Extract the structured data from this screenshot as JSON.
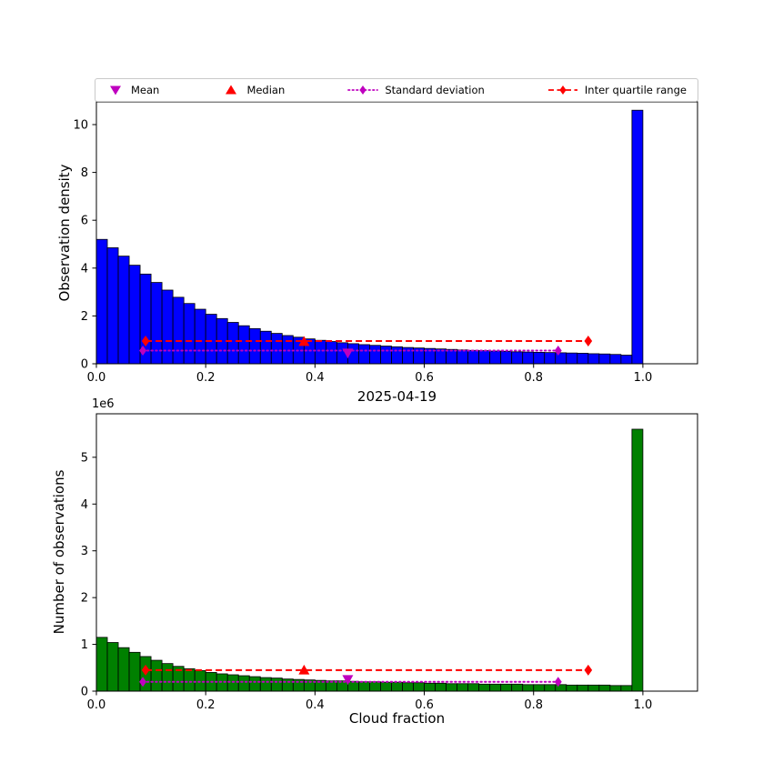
{
  "figure": {
    "legend": {
      "items": [
        {
          "label": "Mean",
          "marker": "triangle-down",
          "color": "#bf00bf",
          "line": "none"
        },
        {
          "label": "Median",
          "marker": "triangle-up",
          "color": "#ff0000",
          "line": "none"
        },
        {
          "label": "Standard deviation",
          "marker": "diamond",
          "color": "#bf00bf",
          "line": "dotted"
        },
        {
          "label": "Inter quartile range",
          "marker": "diamond",
          "color": "#ff0000",
          "line": "dashed"
        }
      ]
    }
  },
  "colors": {
    "mean": "#bf00bf",
    "median": "#ff0000",
    "std": "#bf00bf",
    "iqr": "#ff0000",
    "density_bars": "#0000ff",
    "count_bars": "#008000"
  },
  "chart_data": [
    {
      "name": "observation-density-histogram",
      "type": "bar",
      "ylabel": "Observation density",
      "bar_color": "#0000ff",
      "bin_start": 0,
      "bin_width": 0.02,
      "values": [
        5.2,
        4.85,
        4.5,
        4.12,
        3.75,
        3.4,
        3.08,
        2.78,
        2.52,
        2.28,
        2.07,
        1.89,
        1.73,
        1.59,
        1.47,
        1.36,
        1.27,
        1.18,
        1.11,
        1.04,
        0.98,
        0.93,
        0.88,
        0.84,
        0.8,
        0.77,
        0.74,
        0.71,
        0.68,
        0.66,
        0.64,
        0.62,
        0.6,
        0.58,
        0.56,
        0.55,
        0.53,
        0.52,
        0.5,
        0.49,
        0.48,
        0.47,
        0.46,
        0.45,
        0.44,
        0.42,
        0.41,
        0.39,
        0.36,
        10.6
      ],
      "xlim": [
        0,
        1.1
      ],
      "ylim": [
        0,
        10.95
      ],
      "xticks": [
        0,
        0.2,
        0.4,
        0.6,
        0.8,
        1.0
      ],
      "xtick_labels": [
        "0.0",
        "0.2",
        "0.4",
        "0.6",
        "0.8",
        "1.0"
      ],
      "yticks": [
        0,
        2,
        4,
        6,
        8,
        10
      ],
      "ytick_labels": [
        "0",
        "2",
        "4",
        "6",
        "8",
        "10"
      ],
      "stats": {
        "mean": {
          "x": 0.46,
          "y": 0.45
        },
        "median": {
          "x": 0.38,
          "y": 0.93
        },
        "std": {
          "x1": 0.085,
          "x2": 0.845,
          "y": 0.55
        },
        "iqr": {
          "x1": 0.09,
          "x2": 0.9,
          "y": 0.95
        }
      }
    },
    {
      "name": "observation-count-histogram",
      "type": "bar",
      "title": "2025-04-19",
      "ylabel": "Number of observations",
      "xlabel": "Cloud fraction",
      "y_offset": "1e6",
      "bar_color": "#008000",
      "bin_start": 0,
      "bin_width": 0.02,
      "values": [
        1.15,
        1.04,
        0.93,
        0.83,
        0.74,
        0.66,
        0.59,
        0.53,
        0.48,
        0.44,
        0.4,
        0.37,
        0.35,
        0.33,
        0.31,
        0.29,
        0.28,
        0.26,
        0.25,
        0.24,
        0.23,
        0.22,
        0.22,
        0.21,
        0.2,
        0.2,
        0.19,
        0.19,
        0.18,
        0.18,
        0.17,
        0.17,
        0.16,
        0.16,
        0.16,
        0.15,
        0.15,
        0.15,
        0.15,
        0.14,
        0.14,
        0.14,
        0.14,
        0.13,
        0.13,
        0.13,
        0.13,
        0.12,
        0.12,
        5.6
      ],
      "xlim": [
        0,
        1.1
      ],
      "ylim": [
        0,
        5.93
      ],
      "xticks": [
        0,
        0.2,
        0.4,
        0.6,
        0.8,
        1.0
      ],
      "xtick_labels": [
        "0.0",
        "0.2",
        "0.4",
        "0.6",
        "0.8",
        "1.0"
      ],
      "yticks": [
        0,
        1,
        2,
        3,
        4,
        5
      ],
      "ytick_labels": [
        "0",
        "1",
        "2",
        "3",
        "4",
        "5"
      ],
      "stats": {
        "mean": {
          "x": 0.46,
          "y": 0.25
        },
        "median": {
          "x": 0.38,
          "y": 0.45
        },
        "std": {
          "x1": 0.085,
          "x2": 0.845,
          "y": 0.2
        },
        "iqr": {
          "x1": 0.09,
          "x2": 0.9,
          "y": 0.45
        }
      }
    }
  ]
}
